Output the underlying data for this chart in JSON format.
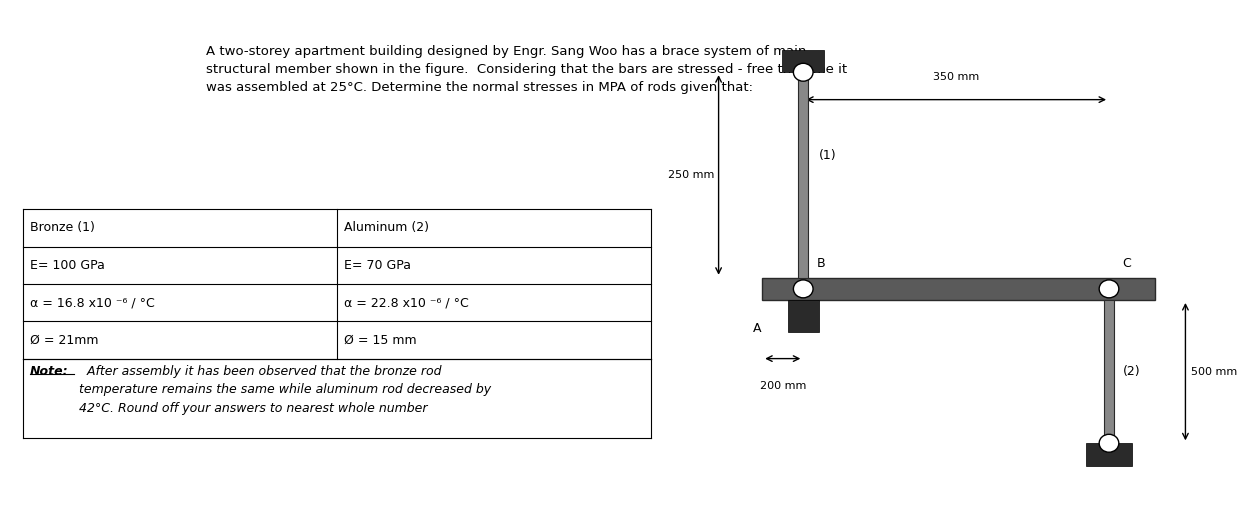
{
  "bg_color": "#f0f0f0",
  "white_bg": "#ffffff",
  "title_text": "A two-storey apartment building designed by Engr. Sang Woo has a brace system of main\nstructural member shown in the figure.  Considering that the bars are stressed - free the time it\nwas assembled at 25°C. Determine the normal stresses in MPA of rods given that:",
  "table_data": [
    [
      "Bronze (1)",
      "Aluminum (2)"
    ],
    [
      "E= 100 GPa",
      "E= 70 GPa"
    ],
    [
      "α = 16.8 x10 ⁻⁶ / °C",
      "α = 22.8 x10 ⁻⁶ / °C"
    ],
    [
      "Ø = 21mm",
      "Ø = 15 mm"
    ]
  ],
  "note_bold": "Note:",
  "note_rest": "  After assembly it has been observed that the bronze rod\ntemperature remains the same while aluminum rod decreased by\n42°C. Round off your answers to nearest whole number",
  "diagram_bg": "#c8c8c8",
  "bar_color": "#5a5a5a",
  "dark_color": "#2a2a2a",
  "label_250": "250 mm",
  "label_350": "350 mm",
  "label_200": "200 mm",
  "label_500": "500 mm",
  "label_A": "A",
  "label_B": "B",
  "label_C": "C",
  "label_1": "(1)",
  "label_2": "(2)"
}
